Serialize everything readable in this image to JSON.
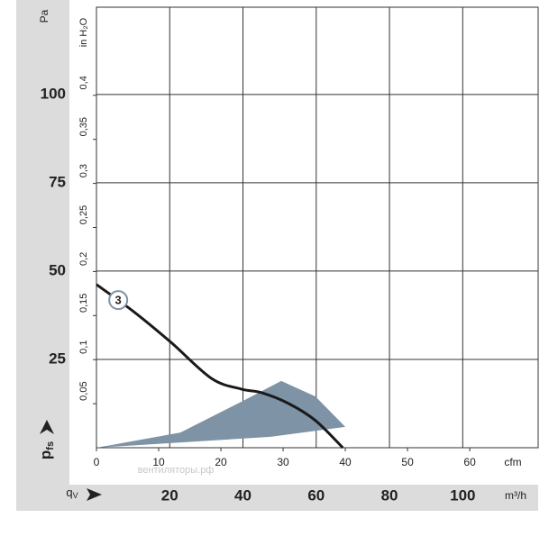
{
  "chart_data": {
    "type": "line",
    "y_unit": "Pa",
    "y2_unit": "in H₂O",
    "x_unit": "cfm",
    "x2_unit": "m³/h",
    "y_label": {
      "main": "p",
      "sub": "fs"
    },
    "x_label": {
      "main": "q",
      "sub": "V"
    },
    "watermark": "вентиляторы.рф",
    "xlim": [
      0,
      71
    ],
    "xticks": [
      0,
      10,
      20,
      30,
      40,
      50,
      60
    ],
    "x2lim": [
      0,
      120.6
    ],
    "x2ticks": [
      20,
      40,
      60,
      80,
      100
    ],
    "ylim": [
      0,
      124.7
    ],
    "yticks": [
      25,
      50,
      75,
      100
    ],
    "y2lim": [
      0,
      0.5
    ],
    "y2ticks": [
      {
        "value": 0.05,
        "label": "0,05"
      },
      {
        "value": 0.1,
        "label": "0,1"
      },
      {
        "value": 0.15,
        "label": "0,15"
      },
      {
        "value": 0.2,
        "label": "0,2"
      },
      {
        "value": 0.25,
        "label": "0,25"
      },
      {
        "value": 0.3,
        "label": "0,3"
      },
      {
        "value": 0.35,
        "label": "0,35"
      },
      {
        "value": 0.4,
        "label": "0,4"
      }
    ],
    "grid": true,
    "series": [
      {
        "name": "3",
        "color": "#1a1a1a",
        "x": [
          0,
          6,
          12,
          18.5,
          23.3,
          26.5,
          30.9,
          35.2,
          39.6
        ],
        "values": [
          46.2,
          38.5,
          29.8,
          19.6,
          16.6,
          15.6,
          12.5,
          7.7,
          0
        ]
      }
    ],
    "region": {
      "color": "#7f93a6",
      "x": [
        0,
        13.5,
        23.6,
        29.7,
        35.2,
        40,
        28,
        0
      ],
      "values": [
        0,
        4.3,
        13.3,
        18.9,
        14.5,
        5.9,
        3.1,
        0
      ]
    },
    "label_point": {
      "x": 3.5,
      "y": 41.8
    }
  }
}
